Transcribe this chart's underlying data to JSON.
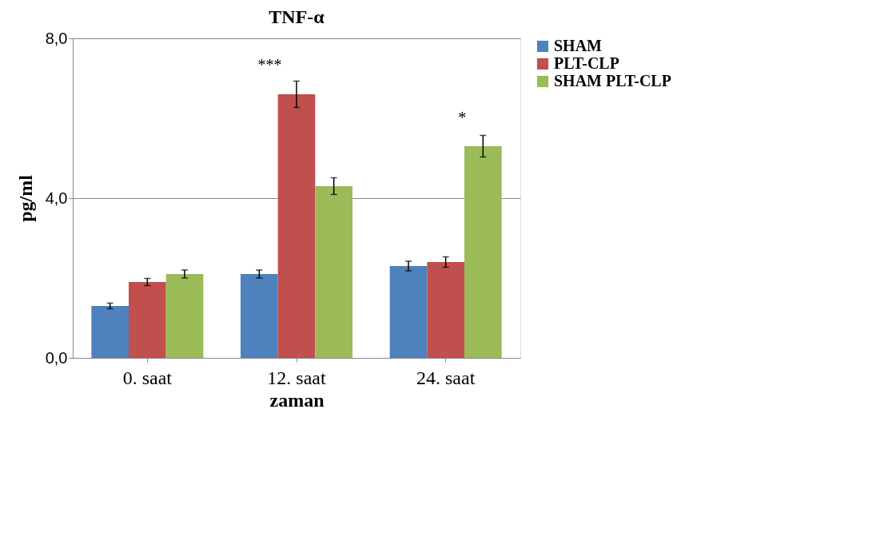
{
  "chart_data": {
    "type": "bar",
    "title": "TNF-α",
    "xlabel": "zaman",
    "ylabel": "pg/ml",
    "categories": [
      "0. saat",
      "12. saat",
      "24. saat"
    ],
    "series": [
      {
        "name": "SHAM",
        "color": "#4f81bd",
        "values": [
          1.3,
          2.1,
          2.3
        ],
        "errors": [
          0.07,
          0.1,
          0.12
        ]
      },
      {
        "name": "PLT-CLP",
        "color": "#c0504d",
        "values": [
          1.9,
          6.6,
          2.4
        ],
        "errors": [
          0.09,
          0.33,
          0.13
        ]
      },
      {
        "name": "SHAM PLT-CLP",
        "color": "#9bbb59",
        "values": [
          2.1,
          4.3,
          5.3
        ],
        "errors": [
          0.1,
          0.21,
          0.27
        ]
      }
    ],
    "ylim": [
      0,
      8
    ],
    "yticks": [
      {
        "value": 0,
        "label": "0,0"
      },
      {
        "value": 4,
        "label": "4,0"
      },
      {
        "value": 8,
        "label": "8,0"
      }
    ],
    "grid": "y",
    "legend": "right",
    "annotations": [
      "***",
      "*"
    ]
  }
}
